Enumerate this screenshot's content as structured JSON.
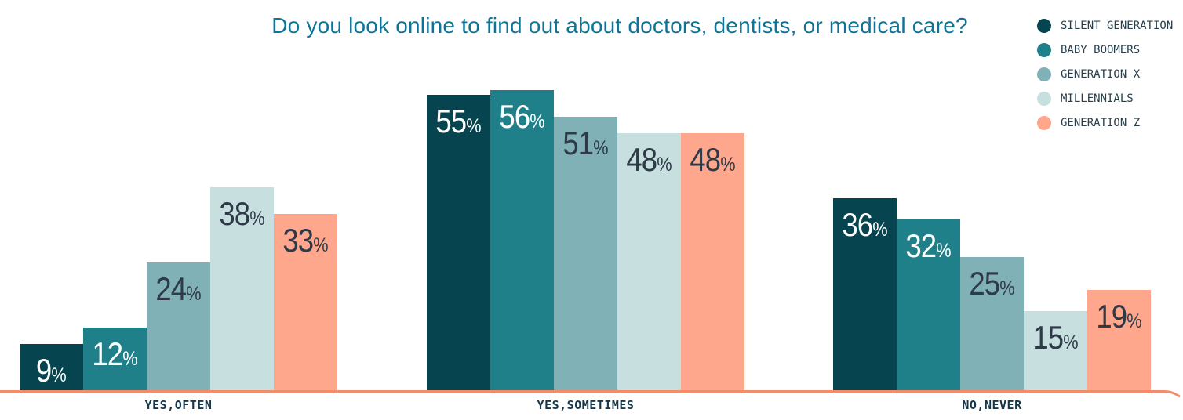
{
  "chart_data": {
    "type": "bar",
    "title": "Do you look online to find out about doctors, dentists, or medical care?",
    "categories": [
      "YES,OFTEN",
      "YES,SOMETIMES",
      "NO,NEVER"
    ],
    "series": [
      {
        "name": "SILENT GENERATION",
        "color": "#06454f",
        "label_color": "#ffffff",
        "values": [
          9,
          55,
          36
        ]
      },
      {
        "name": "BABY BOOMERS",
        "color": "#20808a",
        "label_color": "#ffffff",
        "values": [
          12,
          56,
          32
        ]
      },
      {
        "name": "GENERATION X",
        "color": "#80b1b6",
        "label_color": "#2e3a47",
        "values": [
          24,
          51,
          25
        ]
      },
      {
        "name": "MILLENNIALS",
        "color": "#c8dfe0",
        "label_color": "#2e3a47",
        "values": [
          38,
          48,
          15
        ]
      },
      {
        "name": "GENERATION Z",
        "color": "#ffa78d",
        "label_color": "#2e3a47",
        "values": [
          33,
          48,
          19
        ]
      }
    ],
    "value_suffix": "%",
    "ylim": [
      0,
      60
    ],
    "grid": false,
    "legend_position": "top-right",
    "colors": {
      "background": "#ffffff",
      "title": "#0f7398",
      "category_label": "#16374a",
      "legend_label": "#27404d",
      "baseline": "#f28d6b"
    }
  }
}
